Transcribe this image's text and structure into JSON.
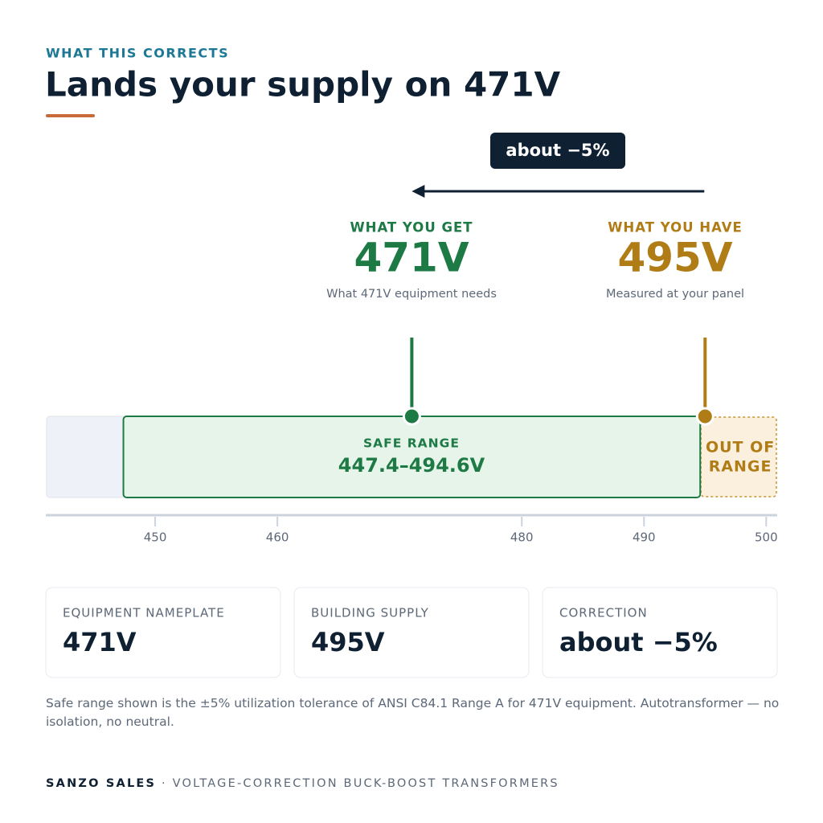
{
  "header": {
    "eyebrow": "WHAT THIS CORRECTS",
    "title": "Lands your supply on 471V"
  },
  "shift": {
    "label": "about −5%"
  },
  "target": {
    "heading": "WHAT YOU GET",
    "value": 471,
    "label": "471V",
    "caption": "What 471V equipment needs"
  },
  "current": {
    "heading": "WHAT YOU HAVE",
    "value": 495,
    "label": "495V",
    "caption": "Measured at your panel"
  },
  "scale": {
    "xlim": [
      441.05,
      500.9
    ],
    "xticks": [
      450,
      460,
      480,
      490,
      500
    ]
  },
  "safe_range": {
    "heading": "SAFE RANGE",
    "low": 447.4,
    "high": 494.6,
    "label": "447.4–494.6V"
  },
  "out_of_range": {
    "lines": [
      "OUT OF",
      "RANGE"
    ]
  },
  "cards": [
    {
      "label": "EQUIPMENT NAMEPLATE",
      "value": "471V"
    },
    {
      "label": "BUILDING SUPPLY",
      "value": "495V"
    },
    {
      "label": "CORRECTION",
      "value": "about −5%"
    }
  ],
  "footnote": "Safe range shown is the ±5% utilization tolerance of ANSI C84.1 Range A for 471V equipment. Autotransformer — no isolation, no neutral.",
  "footer": {
    "brand": "SANZO SALES",
    "separator": "·",
    "tagline": "VOLTAGE-CORRECTION BUCK-BOOST TRANSFORMERS"
  }
}
